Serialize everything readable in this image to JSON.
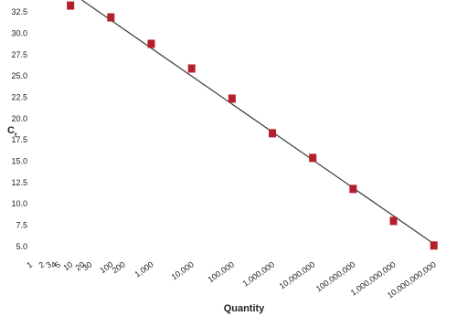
{
  "chart_data": {
    "type": "scatter",
    "xlabel": "Quantity",
    "ylabel": "C",
    "ylabel_subscript": "t",
    "x": [
      10,
      100,
      1000,
      10000,
      100000,
      1000000,
      10000000,
      100000000,
      1000000000,
      10000000000
    ],
    "values": [
      33.25,
      31.86,
      28.76,
      25.87,
      22.34,
      18.28,
      15.39,
      11.75,
      8.0,
      5.12
    ],
    "color": "#b3202c",
    "fit_line": true,
    "fit_color": "#444444",
    "xscale": "log",
    "xlim": [
      1,
      20000000000
    ],
    "ylim": [
      3.6,
      33.9
    ],
    "xticks": [
      1,
      2,
      3,
      4,
      5,
      10,
      20,
      30,
      100,
      200,
      {
        "value": 1000,
        "label": "1,000"
      },
      {
        "value": 10000,
        "label": "10,000"
      },
      {
        "value": 100000,
        "label": "100,000"
      },
      {
        "value": 1000000,
        "label": "1,000,000"
      },
      {
        "value": 10000000,
        "label": "10,000,000"
      },
      {
        "value": 100000000,
        "label": "100,000,000"
      },
      {
        "value": 1000000000,
        "label": "1,000,000,000"
      },
      {
        "value": 10000000000,
        "label": "10,000,000,000"
      }
    ],
    "yticks": [
      {
        "value": 5,
        "label": "5.0"
      },
      7.5,
      {
        "value": 10,
        "label": "10.0"
      },
      12.5,
      {
        "value": 15,
        "label": "15.0"
      },
      17.5,
      {
        "value": 20,
        "label": "20.0"
      },
      22.5,
      {
        "value": 25,
        "label": "25.0"
      },
      27.5,
      {
        "value": 30,
        "label": "30.0"
      },
      32.5
    ]
  }
}
